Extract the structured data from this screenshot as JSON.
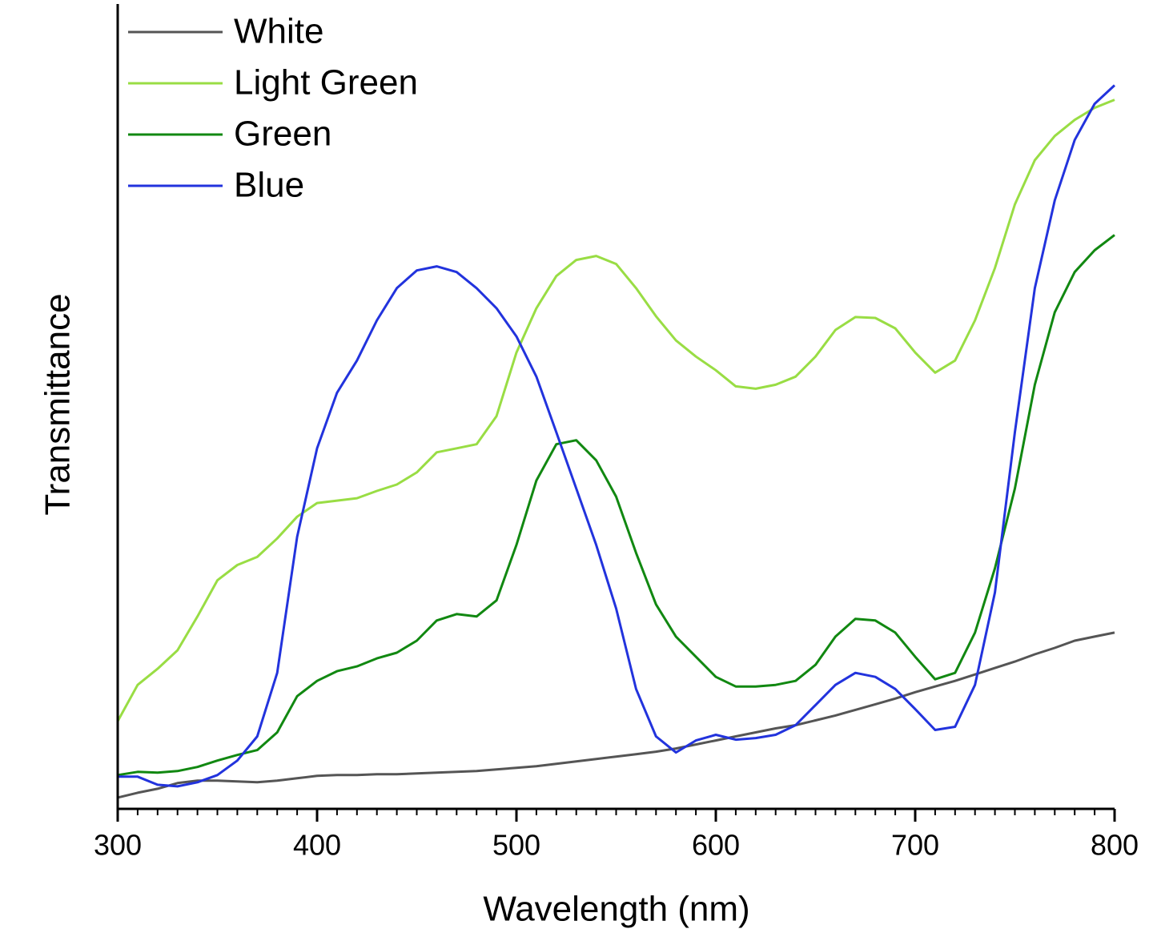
{
  "chart_data": {
    "type": "line",
    "x_label": "Wavelength (nm)",
    "y_label": "Transmittance",
    "x": [
      300,
      310,
      320,
      330,
      340,
      350,
      360,
      370,
      380,
      390,
      400,
      410,
      420,
      430,
      440,
      450,
      460,
      470,
      480,
      490,
      500,
      510,
      520,
      530,
      540,
      550,
      560,
      570,
      580,
      590,
      600,
      610,
      620,
      630,
      640,
      650,
      660,
      670,
      680,
      690,
      700,
      710,
      720,
      730,
      740,
      750,
      760,
      770,
      780,
      790,
      800
    ],
    "series": [
      {
        "name": "White",
        "color": "#555555",
        "values": [
          1.4,
          2.0,
          2.5,
          3.2,
          3.5,
          3.5,
          3.4,
          3.3,
          3.5,
          3.8,
          4.1,
          4.2,
          4.2,
          4.3,
          4.3,
          4.4,
          4.5,
          4.6,
          4.7,
          4.9,
          5.1,
          5.3,
          5.6,
          5.9,
          6.2,
          6.5,
          6.8,
          7.1,
          7.5,
          8.0,
          8.5,
          9.0,
          9.5,
          10.0,
          10.4,
          11.0,
          11.6,
          12.3,
          13.0,
          13.7,
          14.5,
          15.2,
          15.9,
          16.7,
          17.5,
          18.3,
          19.2,
          20.0,
          20.9,
          21.4,
          21.9
        ]
      },
      {
        "name": "Light Green",
        "color": "#99dd44",
        "values": [
          10.9,
          15.4,
          17.4,
          19.7,
          23.9,
          28.4,
          30.3,
          31.3,
          33.6,
          36.3,
          38.0,
          38.3,
          38.6,
          39.5,
          40.3,
          41.8,
          44.3,
          44.8,
          45.3,
          48.8,
          56.7,
          62.2,
          66.2,
          68.2,
          68.7,
          67.7,
          64.7,
          61.2,
          58.2,
          56.2,
          54.5,
          52.5,
          52.2,
          52.7,
          53.7,
          56.2,
          59.5,
          61.1,
          61.0,
          59.7,
          56.7,
          54.2,
          55.7,
          60.7,
          67.2,
          75.1,
          80.6,
          83.6,
          85.6,
          87.1,
          88.1
        ]
      },
      {
        "name": "Green",
        "color": "#118811",
        "values": [
          4.2,
          4.6,
          4.5,
          4.7,
          5.2,
          6.0,
          6.7,
          7.3,
          9.5,
          14.0,
          15.9,
          17.1,
          17.7,
          18.7,
          19.4,
          20.9,
          23.4,
          24.2,
          23.9,
          25.9,
          32.8,
          40.8,
          45.3,
          45.8,
          43.3,
          38.8,
          31.8,
          25.4,
          21.4,
          18.9,
          16.4,
          15.2,
          15.2,
          15.4,
          15.9,
          17.9,
          21.4,
          23.6,
          23.4,
          21.9,
          18.9,
          16.1,
          16.9,
          21.9,
          29.9,
          39.8,
          52.7,
          61.7,
          66.7,
          69.4,
          71.3
        ]
      },
      {
        "name": "Blue",
        "color": "#2233dd",
        "values": [
          4.0,
          4.0,
          3.0,
          2.8,
          3.3,
          4.2,
          6.0,
          9.0,
          16.9,
          33.8,
          44.8,
          51.7,
          55.7,
          60.7,
          64.7,
          66.9,
          67.4,
          66.7,
          64.7,
          62.2,
          58.7,
          53.7,
          46.8,
          39.8,
          32.8,
          24.9,
          14.9,
          9.0,
          7.0,
          8.5,
          9.2,
          8.6,
          8.8,
          9.2,
          10.4,
          12.9,
          15.4,
          16.9,
          16.4,
          14.9,
          12.4,
          9.8,
          10.2,
          15.4,
          26.9,
          46.8,
          64.7,
          75.6,
          83.1,
          87.6,
          89.9
        ]
      }
    ],
    "xlim": [
      300,
      800
    ],
    "xticks": [
      300,
      400,
      500,
      600,
      700,
      800
    ],
    "xminor_step": 10,
    "ylim": [
      0,
      100
    ],
    "legend": "upper left"
  }
}
